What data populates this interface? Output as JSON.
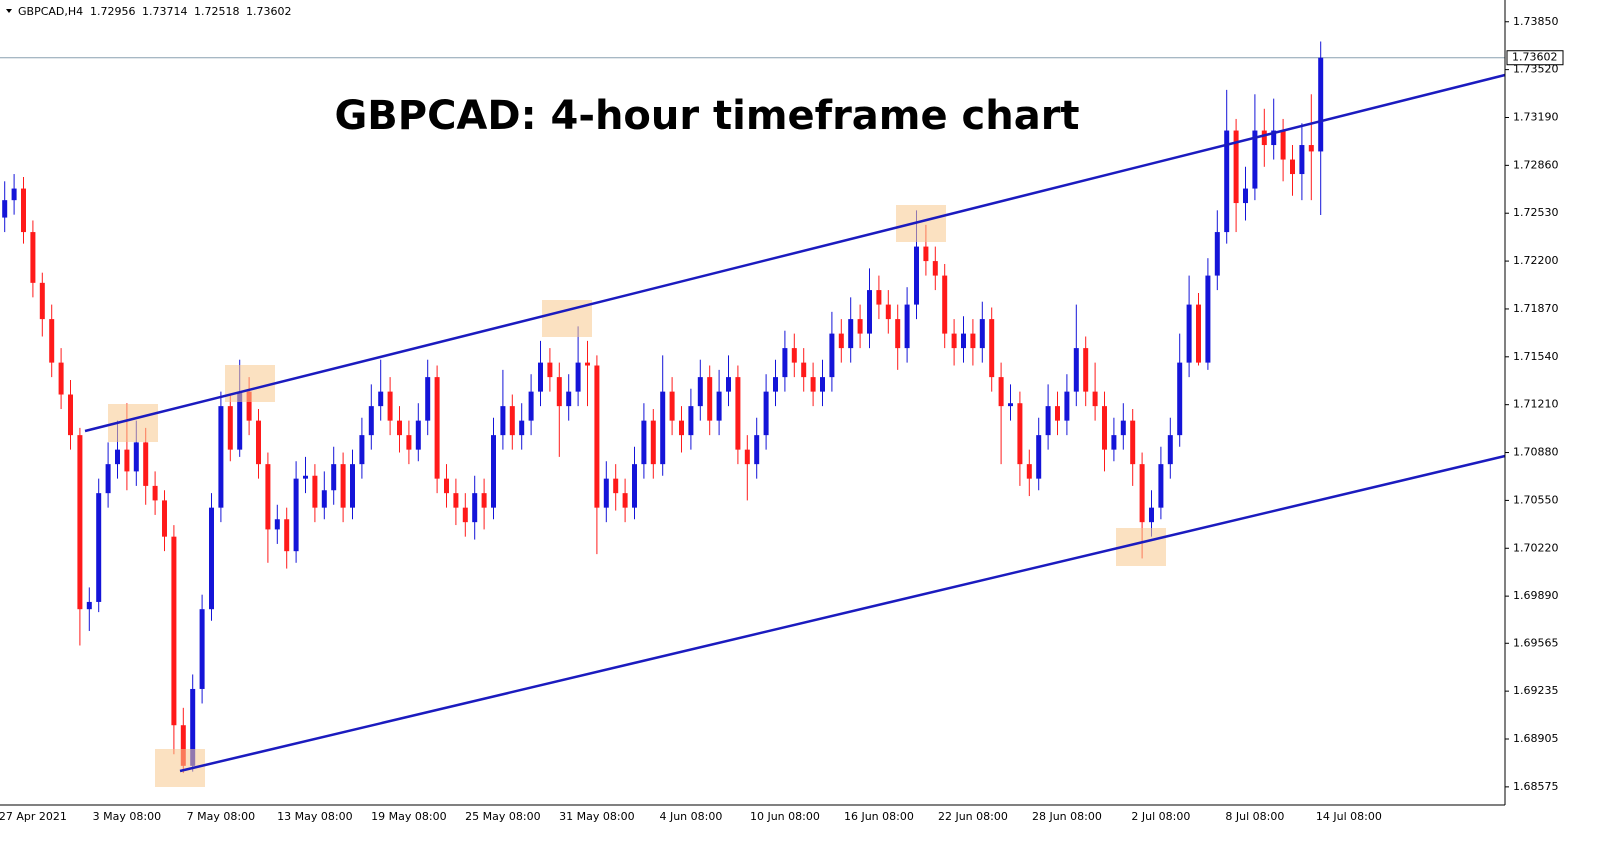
{
  "chart_data": {
    "type": "candlestick",
    "symbol": "GBPCAD,H4",
    "title": "GBPCAD: 4-hour timeframe chart",
    "up_color": "#1414d8",
    "down_color": "#ff1a1a",
    "ylim": [
      1.6845,
      1.74
    ],
    "yticks": [
      {
        "value": 1.7385,
        "label": "1.73850"
      },
      {
        "value": 1.7352,
        "label": "1.73520"
      },
      {
        "value": 1.7319,
        "label": "1.73190"
      },
      {
        "value": 1.7286,
        "label": "1.72860"
      },
      {
        "value": 1.7253,
        "label": "1.72530"
      },
      {
        "value": 1.722,
        "label": "1.72200"
      },
      {
        "value": 1.7187,
        "label": "1.71870"
      },
      {
        "value": 1.7154,
        "label": "1.71540"
      },
      {
        "value": 1.7121,
        "label": "1.71210"
      },
      {
        "value": 1.7088,
        "label": "1.70880"
      },
      {
        "value": 1.7055,
        "label": "1.70550"
      },
      {
        "value": 1.7022,
        "label": "1.70220"
      },
      {
        "value": 1.6989,
        "label": "1.69890"
      },
      1.69565,
      1.69235,
      1.68905,
      1.68575
    ],
    "categories": [
      null,
      null,
      null,
      "27 Apr 2021",
      null,
      null,
      null,
      null,
      null,
      null,
      null,
      null,
      null,
      "3 May 08:00",
      null,
      null,
      null,
      null,
      null,
      null,
      null,
      null,
      null,
      "7 May 08:00",
      null,
      null,
      null,
      null,
      null,
      null,
      null,
      null,
      null,
      "13 May 08:00",
      null,
      null,
      null,
      null,
      null,
      null,
      null,
      null,
      null,
      "19 May 08:00",
      null,
      null,
      null,
      null,
      null,
      null,
      null,
      null,
      null,
      "25 May 08:00",
      null,
      null,
      null,
      null,
      null,
      null,
      null,
      null,
      null,
      "31 May 08:00",
      null,
      null,
      null,
      null,
      null,
      null,
      null,
      null,
      null,
      "4 Jun 08:00",
      null,
      null,
      null,
      null,
      null,
      null,
      null,
      null,
      null,
      "10 Jun 08:00",
      null,
      null,
      null,
      null,
      null,
      null,
      null,
      null,
      null,
      "16 Jun 08:00",
      null,
      null,
      null,
      null,
      null,
      null,
      null,
      null,
      null,
      "22 Jun 08:00",
      null,
      null,
      null,
      null,
      null,
      null,
      null,
      null,
      null,
      "28 Jun 08:00",
      null,
      null,
      null,
      null,
      null,
      null,
      null,
      null,
      null,
      "2 Jul 08:00",
      null,
      null,
      null,
      null,
      null,
      null,
      null,
      null,
      null,
      "8 Jul 08:00",
      null,
      null,
      null,
      null,
      null,
      null,
      null,
      null,
      null,
      "14 Jul 08:00"
    ],
    "open": [
      1.725,
      1.7262,
      1.727,
      1.724,
      1.7205,
      1.718,
      1.715,
      1.7128,
      1.71,
      1.698,
      1.6985,
      1.706,
      1.708,
      1.709,
      1.7075,
      1.7095,
      1.7065,
      1.7055,
      1.703,
      1.69,
      1.6872,
      1.6925,
      1.698,
      1.705,
      1.712,
      1.709,
      1.713,
      1.711,
      1.708,
      1.7035,
      1.7042,
      1.702,
      1.707,
      1.7072,
      1.705,
      1.7062,
      1.708,
      1.705,
      1.708,
      1.71,
      1.712,
      1.713,
      1.711,
      1.71,
      1.709,
      1.711,
      1.714,
      1.707,
      1.706,
      1.705,
      1.704,
      1.706,
      1.705,
      1.71,
      1.712,
      1.71,
      1.711,
      1.713,
      1.715,
      1.714,
      1.712,
      1.713,
      1.715,
      1.7148,
      1.705,
      1.707,
      1.706,
      1.705,
      1.708,
      1.711,
      1.708,
      1.713,
      1.711,
      1.71,
      1.712,
      1.714,
      1.711,
      1.713,
      1.714,
      1.709,
      1.708,
      1.71,
      1.713,
      1.714,
      1.716,
      1.715,
      1.714,
      1.713,
      1.714,
      1.717,
      1.716,
      1.718,
      1.717,
      1.72,
      1.719,
      1.718,
      1.716,
      1.719,
      1.723,
      1.722,
      1.721,
      1.717,
      1.716,
      1.717,
      1.716,
      1.718,
      1.714,
      1.712,
      1.7122,
      1.708,
      1.707,
      1.71,
      1.712,
      1.711,
      1.713,
      1.716,
      1.713,
      1.712,
      1.709,
      1.71,
      1.711,
      1.708,
      1.704,
      1.705,
      1.708,
      1.71,
      1.715,
      1.719,
      1.715,
      1.721,
      1.724,
      1.731,
      1.726,
      1.727,
      1.731,
      1.73,
      1.731,
      1.729,
      1.728,
      1.73,
      1.72956,
      null,
      null,
      null
    ],
    "high": [
      1.7275,
      1.728,
      1.7278,
      1.7248,
      1.7212,
      1.719,
      1.716,
      1.7138,
      1.7105,
      1.6995,
      1.707,
      1.7095,
      1.711,
      1.7122,
      1.711,
      1.7105,
      1.7075,
      1.7062,
      1.7038,
      1.6912,
      1.6935,
      1.699,
      1.706,
      1.713,
      1.7128,
      1.7152,
      1.714,
      1.7118,
      1.7088,
      1.7052,
      1.705,
      1.7082,
      1.7085,
      1.708,
      1.7075,
      1.7092,
      1.7088,
      1.709,
      1.7112,
      1.7135,
      1.7152,
      1.714,
      1.712,
      1.711,
      1.7122,
      1.7152,
      1.7148,
      1.708,
      1.707,
      1.706,
      1.7072,
      1.707,
      1.7112,
      1.7145,
      1.7128,
      1.7122,
      1.7142,
      1.7165,
      1.716,
      1.715,
      1.7142,
      1.7175,
      1.7165,
      1.7155,
      1.7082,
      1.708,
      1.707,
      1.7092,
      1.7122,
      1.7118,
      1.7155,
      1.714,
      1.712,
      1.7132,
      1.7152,
      1.7148,
      1.7145,
      1.7155,
      1.7148,
      1.71,
      1.7112,
      1.7142,
      1.7152,
      1.7172,
      1.717,
      1.716,
      1.715,
      1.7152,
      1.7185,
      1.718,
      1.7195,
      1.719,
      1.7215,
      1.721,
      1.72,
      1.719,
      1.7202,
      1.7255,
      1.7245,
      1.723,
      1.7218,
      1.718,
      1.7182,
      1.718,
      1.7192,
      1.7188,
      1.715,
      1.7135,
      1.713,
      1.709,
      1.7112,
      1.7135,
      1.713,
      1.7142,
      1.719,
      1.7168,
      1.715,
      1.713,
      1.7112,
      1.7122,
      1.7118,
      1.7088,
      1.7062,
      1.7092,
      1.7112,
      1.717,
      1.721,
      1.7198,
      1.7222,
      1.7255,
      1.7338,
      1.7318,
      1.7285,
      1.7335,
      1.7325,
      1.7332,
      1.7318,
      1.73,
      1.7315,
      1.7335,
      1.73714,
      null,
      null,
      null
    ],
    "low": [
      1.724,
      1.7252,
      1.7232,
      1.7195,
      1.7168,
      1.714,
      1.7118,
      1.709,
      1.6955,
      1.6965,
      1.6978,
      1.705,
      1.707,
      1.7062,
      1.7065,
      1.7052,
      1.7045,
      1.702,
      1.688,
      1.6867,
      1.6868,
      1.6915,
      1.6972,
      1.704,
      1.7082,
      1.7085,
      1.71,
      1.707,
      1.7012,
      1.7025,
      1.7008,
      1.7012,
      1.706,
      1.704,
      1.7042,
      1.7052,
      1.704,
      1.7042,
      1.707,
      1.709,
      1.711,
      1.71,
      1.7088,
      1.708,
      1.7082,
      1.71,
      1.706,
      1.705,
      1.7038,
      1.703,
      1.7028,
      1.7035,
      1.7042,
      1.709,
      1.709,
      1.709,
      1.71,
      1.712,
      1.713,
      1.7085,
      1.711,
      1.712,
      1.712,
      1.7018,
      1.704,
      1.7048,
      1.704,
      1.7042,
      1.707,
      1.707,
      1.7072,
      1.71,
      1.7088,
      1.709,
      1.711,
      1.71,
      1.71,
      1.712,
      1.708,
      1.7055,
      1.707,
      1.709,
      1.712,
      1.713,
      1.714,
      1.713,
      1.712,
      1.712,
      1.713,
      1.715,
      1.715,
      1.716,
      1.716,
      1.718,
      1.717,
      1.7145,
      1.715,
      1.718,
      1.721,
      1.72,
      1.716,
      1.7148,
      1.715,
      1.7148,
      1.715,
      1.713,
      1.708,
      1.711,
      1.7065,
      1.7058,
      1.7062,
      1.709,
      1.71,
      1.71,
      1.712,
      1.712,
      1.711,
      1.7075,
      1.7082,
      1.709,
      1.7065,
      1.7015,
      1.703,
      1.7042,
      1.707,
      1.7092,
      1.714,
      1.7148,
      1.7145,
      1.72,
      1.7232,
      1.724,
      1.7248,
      1.7262,
      1.7285,
      1.729,
      1.7275,
      1.7265,
      1.7262,
      1.7262,
      1.72518,
      null,
      null,
      null
    ],
    "close": [
      1.7262,
      1.727,
      1.724,
      1.7205,
      1.718,
      1.715,
      1.7128,
      1.71,
      1.698,
      1.6985,
      1.706,
      1.708,
      1.709,
      1.7075,
      1.7095,
      1.7065,
      1.7055,
      1.703,
      1.69,
      1.6872,
      1.6925,
      1.698,
      1.705,
      1.712,
      1.709,
      1.713,
      1.711,
      1.708,
      1.7035,
      1.7042,
      1.702,
      1.707,
      1.7072,
      1.705,
      1.7062,
      1.708,
      1.705,
      1.708,
      1.71,
      1.712,
      1.713,
      1.711,
      1.71,
      1.709,
      1.711,
      1.714,
      1.707,
      1.706,
      1.705,
      1.704,
      1.706,
      1.705,
      1.71,
      1.712,
      1.71,
      1.711,
      1.713,
      1.715,
      1.714,
      1.712,
      1.713,
      1.715,
      1.7148,
      1.705,
      1.707,
      1.706,
      1.705,
      1.708,
      1.711,
      1.708,
      1.713,
      1.711,
      1.71,
      1.712,
      1.714,
      1.711,
      1.713,
      1.714,
      1.709,
      1.708,
      1.71,
      1.713,
      1.714,
      1.716,
      1.715,
      1.714,
      1.713,
      1.714,
      1.717,
      1.716,
      1.718,
      1.717,
      1.72,
      1.719,
      1.718,
      1.716,
      1.719,
      1.723,
      1.722,
      1.721,
      1.717,
      1.716,
      1.717,
      1.716,
      1.718,
      1.714,
      1.712,
      1.7122,
      1.708,
      1.707,
      1.71,
      1.712,
      1.711,
      1.713,
      1.716,
      1.713,
      1.712,
      1.709,
      1.71,
      1.711,
      1.708,
      1.704,
      1.705,
      1.708,
      1.71,
      1.715,
      1.719,
      1.715,
      1.721,
      1.724,
      1.731,
      1.726,
      1.727,
      1.731,
      1.73,
      1.731,
      1.729,
      1.728,
      1.73,
      1.72956,
      1.73602,
      null,
      null,
      null
    ]
  }
}
